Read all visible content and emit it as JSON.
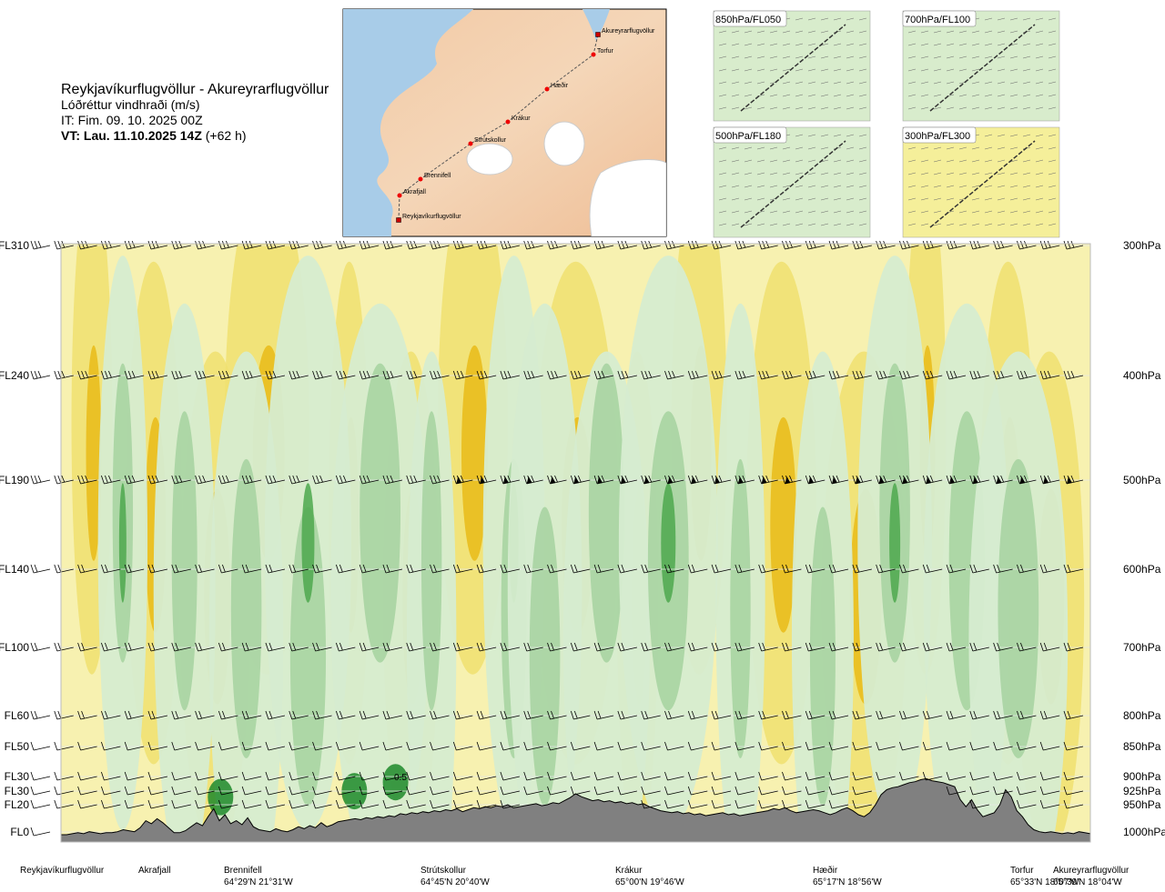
{
  "header": {
    "route": "Reykjavíkurflugvöllur - Akureyrarflugvöllur",
    "variable": "Lóðréttur vindhraði (m/s)",
    "issue_time": "IT: Fim. 09. 10. 2025 00Z",
    "valid_time_bold": "VT: Lau. 11.10.2025 14Z",
    "valid_time_lead": " (+62 h)"
  },
  "inset_map": {
    "labels": [
      "Akureyrarflugvöllur",
      "Torfur",
      "Hæðir",
      "Krákur",
      "Strútskollur",
      "Brennifell",
      "Akrafjall",
      "Reykjavíkurflugvöllur"
    ]
  },
  "panels": [
    {
      "label": "850hPa/FL050"
    },
    {
      "label": "700hPa/FL100"
    },
    {
      "label": "500hPa/FL180"
    },
    {
      "label": "300hPa/FL300"
    }
  ],
  "colors": {
    "strong_down": "#e8b812",
    "moderate_down": "#f0e070",
    "weak_down": "#f7f1b0",
    "weak_up": "#d6ecd0",
    "moderate_up": "#a9d4a2",
    "strong_up": "#4ea84e",
    "very_strong_up": "#1e8a2a",
    "terrain": "#808080"
  },
  "chart_data": {
    "type": "heatmap",
    "title": "Reykjavíkurflugvöllur - Akureyrarflugvöllur",
    "left_axis_labels": [
      {
        "label": "FL310",
        "level_hpa": 300
      },
      {
        "label": "FL240",
        "level_hpa": 400
      },
      {
        "label": "FL190",
        "level_hpa": 500
      },
      {
        "label": "FL140",
        "level_hpa": 600
      },
      {
        "label": "FL100",
        "level_hpa": 700
      },
      {
        "label": "FL60",
        "level_hpa": 800
      },
      {
        "label": "FL50",
        "level_hpa": 850
      },
      {
        "label": "FL30",
        "level_hpa": 900
      },
      {
        "label": "FL30",
        "level_hpa": 925
      },
      {
        "label": "FL20",
        "level_hpa": 950
      },
      {
        "label": "FL0",
        "level_hpa": 1000
      }
    ],
    "right_axis_labels": [
      "300hPa",
      "400hPa",
      "500hPa",
      "600hPa",
      "700hPa",
      "800hPa",
      "850hPa",
      "900hPa",
      "925hPa",
      "950hPa",
      "1000hPa"
    ],
    "stations": [
      {
        "name": "Reykjavíkurflugvöllur",
        "coord": "",
        "pos": 0.0
      },
      {
        "name": "Akrafjall",
        "coord": "",
        "pos": 0.08
      },
      {
        "name": "Brennifell",
        "coord": "64°29'N 21°31'W",
        "pos": 0.18
      },
      {
        "name": "Strútskollur",
        "coord": "64°45'N 20°40'W",
        "pos": 0.37
      },
      {
        "name": "Krákur",
        "coord": "65°00'N 19°46'W",
        "pos": 0.55
      },
      {
        "name": "Hæðir",
        "coord": "65°17'N 18°56'W",
        "pos": 0.74
      },
      {
        "name": "Torfur",
        "coord": "65°33'N 18°07'W",
        "pos": 0.94
      },
      {
        "name": "Akureyrarflugvöllur",
        "coord": "65°39'N 18°04'W",
        "pos": 1.0
      }
    ],
    "annotation": "0.5",
    "terrain_profile": [
      0,
      0,
      0.01,
      0.02,
      0.01,
      0.03,
      0.02,
      0.01,
      0.02,
      0.02,
      0.03,
      0.05,
      0.04,
      0.03,
      0.07,
      0.14,
      0.11,
      0.16,
      0.12,
      0.07,
      0.02,
      0.02,
      0.04,
      0.08,
      0.12,
      0.09,
      0.18,
      0.26,
      0.14,
      0.2,
      0.11,
      0.14,
      0.1,
      0.17,
      0.08,
      0.05,
      0.04,
      0.03,
      0.06,
      0.04,
      0.03,
      0.05,
      0.08,
      0.06,
      0.09,
      0.07,
      0.12,
      0.08,
      0.1,
      0.13,
      0.14,
      0.15,
      0.16,
      0.15,
      0.17,
      0.16,
      0.18,
      0.17,
      0.19,
      0.18,
      0.21,
      0.2,
      0.22,
      0.21,
      0.23,
      0.22,
      0.24,
      0.23,
      0.25,
      0.24,
      0.26,
      0.23,
      0.25,
      0.27,
      0.26,
      0.28,
      0.27,
      0.29,
      0.28,
      0.3,
      0.27,
      0.28,
      0.29,
      0.3,
      0.31,
      0.29,
      0.3,
      0.32,
      0.31,
      0.34,
      0.37,
      0.41,
      0.38,
      0.36,
      0.34,
      0.35,
      0.33,
      0.34,
      0.32,
      0.33,
      0.31,
      0.32,
      0.3,
      0.31,
      0.28,
      0.26,
      0.24,
      0.23,
      0.22,
      0.23,
      0.21,
      0.22,
      0.2,
      0.21,
      0.19,
      0.2,
      0.21,
      0.22,
      0.2,
      0.21,
      0.19,
      0.2,
      0.21,
      0.22,
      0.23,
      0.24,
      0.26,
      0.25,
      0.27,
      0.24,
      0.22,
      0.23,
      0.24,
      0.25,
      0.24,
      0.22,
      0.2,
      0.22,
      0.25,
      0.27,
      0.24,
      0.2,
      0.18,
      0.22,
      0.3,
      0.4,
      0.45,
      0.47,
      0.48,
      0.5,
      0.52,
      0.53,
      0.55,
      0.56,
      0.54,
      0.53,
      0.52,
      0.5,
      0.48,
      0.35,
      0.28,
      0.35,
      0.25,
      0.18,
      0.2,
      0.22,
      0.3,
      0.45,
      0.38,
      0.24,
      0.18,
      0.1,
      0.05,
      0.03,
      0.02,
      0.03,
      0.02,
      0.01,
      0.02,
      0.01,
      0.03,
      0.02,
      0.01
    ],
    "fields": {
      "down_bands": [
        0.03,
        0.09,
        0.15,
        0.2,
        0.28,
        0.34,
        0.4,
        0.5,
        0.56,
        0.62,
        0.7,
        0.78,
        0.84,
        0.92,
        0.96
      ],
      "up_bands": [
        0.06,
        0.12,
        0.18,
        0.24,
        0.31,
        0.36,
        0.44,
        0.47,
        0.53,
        0.59,
        0.66,
        0.74,
        0.81,
        0.88,
        0.93
      ]
    }
  }
}
